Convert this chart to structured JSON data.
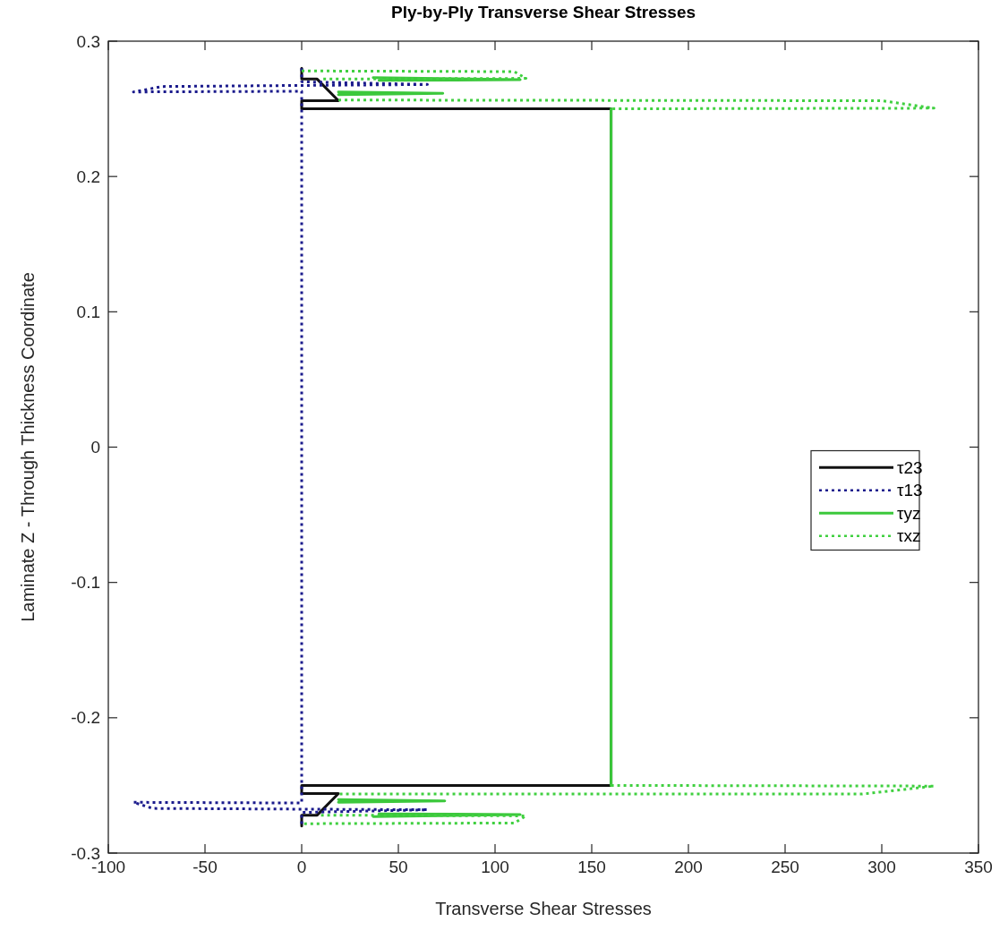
{
  "chart_data": {
    "type": "line",
    "title": "Ply-by-Ply Transverse Shear Stresses",
    "xlabel": "Transverse Shear Stresses",
    "ylabel": "Laminate Z - Through Thickness Coordinate",
    "xlim": [
      -100,
      350
    ],
    "xticks": [
      -100,
      -50,
      0,
      50,
      100,
      150,
      200,
      250,
      300,
      350
    ],
    "ylim": [
      -0.3,
      0.3
    ],
    "yticks": [
      -0.3,
      -0.2,
      -0.1,
      0,
      0.1,
      0.2,
      0.3
    ],
    "legend": "right",
    "series": [
      {
        "name": "τ23",
        "color": "#111111",
        "line_style": "solid",
        "x": [
          0,
          0,
          8,
          19,
          0,
          0,
          160,
          160,
          0,
          0,
          19,
          8,
          0,
          0
        ],
        "values": [
          0.28,
          0.272,
          0.272,
          0.256,
          0.256,
          0.25,
          0.25,
          -0.25,
          -0.25,
          -0.256,
          -0.256,
          -0.272,
          -0.272,
          -0.28
        ]
      },
      {
        "name": "τ13",
        "color": "#1a1a8c",
        "line_style": "dotted",
        "x": [
          0,
          0,
          65,
          -72,
          -87,
          0,
          0,
          -87,
          -77,
          65,
          0,
          0
        ],
        "values": [
          0.28,
          0.27,
          0.268,
          0.2665,
          0.2625,
          0.263,
          -0.263,
          -0.2625,
          -0.267,
          -0.268,
          -0.27,
          -0.28
        ]
      },
      {
        "name": "τyz",
        "color": "#3cc83c",
        "line_style": "solid",
        "x": [
          37,
          113,
          40,
          null,
          19,
          73,
          19,
          null,
          160,
          160,
          null,
          19,
          74,
          19,
          null,
          40,
          113,
          37
        ],
        "values": [
          0.273,
          0.2715,
          0.271,
          null,
          0.2625,
          0.2615,
          0.2605,
          null,
          0.25,
          -0.25,
          null,
          -0.2605,
          -0.2615,
          -0.2625,
          null,
          -0.271,
          -0.2715,
          -0.273
        ]
      },
      {
        "name": "τxz",
        "color": "#40d040",
        "line_style": "dotted",
        "x": [
          0,
          110,
          116,
          10,
          null,
          19,
          300,
          327,
          160,
          null,
          160,
          327,
          290,
          19,
          null,
          10,
          116,
          110,
          0
        ],
        "values": [
          0.278,
          0.2775,
          0.2725,
          0.272,
          null,
          0.2565,
          0.256,
          0.2505,
          0.25,
          null,
          -0.25,
          -0.2505,
          -0.2564,
          -0.2564,
          null,
          -0.272,
          -0.2725,
          -0.2778,
          -0.2783
        ]
      }
    ]
  }
}
